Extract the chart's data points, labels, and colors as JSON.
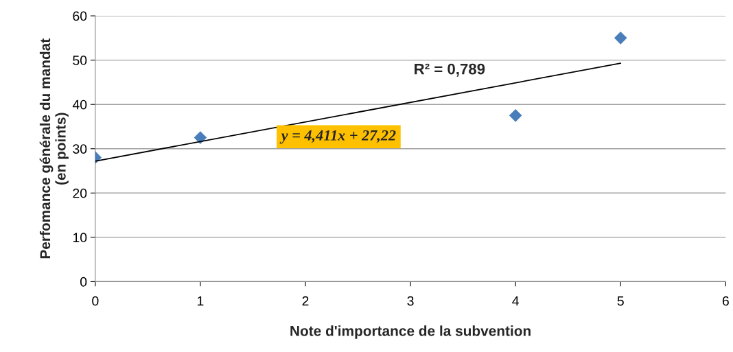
{
  "chart_data": {
    "type": "scatter",
    "xlabel": "Note d'importance de la subvention",
    "ylabel": "Perfomance générale du mandat\n(en points)",
    "series": [
      {
        "color": "#4a7ebb",
        "x": [
          0,
          1,
          4,
          5
        ],
        "values": [
          28,
          32.5,
          37.5,
          55
        ],
        "marker": "diamond"
      },
      {
        "type": "line",
        "color": "#000000",
        "x": [
          0,
          5
        ],
        "values": [
          27.2,
          49.3
        ],
        "line_style": "solid"
      }
    ],
    "annotations": [
      "R² = 0,789",
      "y = 4,411x + 27,22"
    ],
    "xlim": [
      0,
      6
    ],
    "xticks": [
      0,
      1,
      2,
      3,
      4,
      5,
      6
    ],
    "ylim": [
      0,
      60
    ],
    "yticks": [
      0,
      10,
      20,
      30,
      40,
      50,
      60
    ],
    "grid": "y",
    "legend": false
  }
}
